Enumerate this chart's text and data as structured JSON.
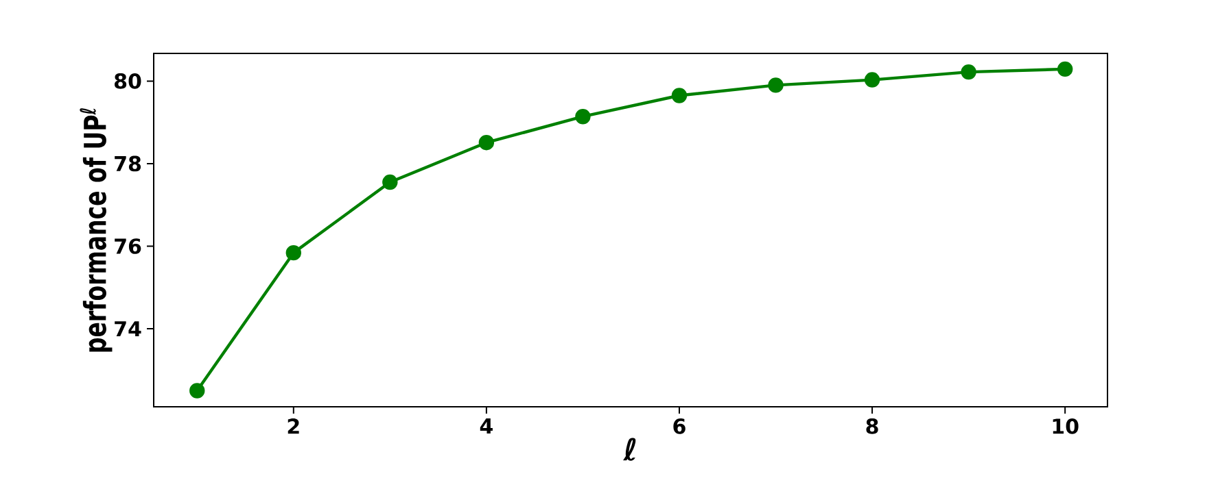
{
  "chart_data": {
    "type": "line",
    "xlabel": "ℓ",
    "ylabel": "performance of UP$^{ℓ}$",
    "x": [
      1,
      2,
      3,
      4,
      5,
      6,
      7,
      8,
      9,
      10
    ],
    "series": [
      {
        "color": "#008000",
        "values": [
          72.5,
          75.84,
          77.55,
          78.51,
          79.14,
          79.65,
          79.9,
          80.03,
          80.22,
          80.29
        ]
      }
    ],
    "xlim": [
      0.55,
      10.44
    ],
    "ylim": [
      72.11,
      80.67
    ],
    "xticks": [
      2,
      4,
      6,
      8,
      10
    ],
    "yticks": [
      74,
      76,
      78,
      80
    ],
    "marker": "circle",
    "line_style": "solid"
  }
}
